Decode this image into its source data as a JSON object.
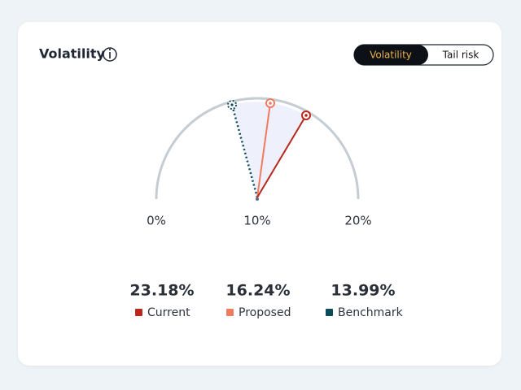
{
  "header": {
    "title": "Volatility"
  },
  "toggle": {
    "options": [
      "Volatility",
      "Tail risk"
    ]
  },
  "gauge": {
    "labels": [
      "0%",
      "10%",
      "20%"
    ]
  },
  "stats": [
    {
      "value": "23.18%",
      "label": "Current"
    },
    {
      "value": "16.24%",
      "label": "Proposed"
    },
    {
      "value": "13.99%",
      "label": "Benchmark"
    }
  ]
}
